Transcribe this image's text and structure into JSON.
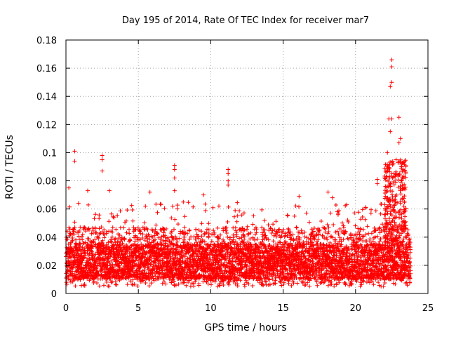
{
  "chart_data": {
    "type": "scatter",
    "title": "Day 195 of 2014, Rate Of TEC Index for receiver mar7",
    "xlabel": "GPS time / hours",
    "ylabel": "ROTI / TECUs",
    "xlim": [
      0,
      25
    ],
    "ylim": [
      0,
      0.18
    ],
    "xticks": [
      0,
      5,
      10,
      15,
      20,
      25
    ],
    "yticks": [
      0,
      0.02,
      0.04,
      0.06,
      0.08,
      0.1,
      0.12,
      0.14,
      0.16,
      0.18
    ],
    "xtick_labels": [
      "0",
      "5",
      "10",
      "15",
      "20",
      "25"
    ],
    "ytick_labels": [
      "0",
      "0.02",
      "0.04",
      "0.06",
      "0.08",
      "0.1",
      "0.12",
      "0.14",
      "0.16",
      "0.18"
    ],
    "grid": true,
    "marker": "plus",
    "color": "#ff0000",
    "series": [
      {
        "name": "ROTI",
        "x_range": [
          0,
          23.8
        ],
        "baseline_band": [
          0.01,
          0.035
        ],
        "notable_points": [
          {
            "x": 0.6,
            "y": 0.101
          },
          {
            "x": 0.6,
            "y": 0.094
          },
          {
            "x": 0.2,
            "y": 0.075
          },
          {
            "x": 1.5,
            "y": 0.073
          },
          {
            "x": 2.5,
            "y": 0.098
          },
          {
            "x": 2.5,
            "y": 0.095
          },
          {
            "x": 2.5,
            "y": 0.087
          },
          {
            "x": 3.0,
            "y": 0.073
          },
          {
            "x": 5.8,
            "y": 0.072
          },
          {
            "x": 7.5,
            "y": 0.091
          },
          {
            "x": 7.5,
            "y": 0.088
          },
          {
            "x": 7.5,
            "y": 0.082
          },
          {
            "x": 7.5,
            "y": 0.073
          },
          {
            "x": 9.5,
            "y": 0.07
          },
          {
            "x": 11.2,
            "y": 0.088
          },
          {
            "x": 11.2,
            "y": 0.085
          },
          {
            "x": 11.2,
            "y": 0.08
          },
          {
            "x": 11.2,
            "y": 0.077
          },
          {
            "x": 16.1,
            "y": 0.069
          },
          {
            "x": 18.1,
            "y": 0.072
          },
          {
            "x": 18.4,
            "y": 0.068
          },
          {
            "x": 21.5,
            "y": 0.081
          },
          {
            "x": 21.5,
            "y": 0.078
          },
          {
            "x": 22.0,
            "y": 0.082
          },
          {
            "x": 22.4,
            "y": 0.147
          },
          {
            "x": 22.5,
            "y": 0.15
          },
          {
            "x": 22.5,
            "y": 0.161
          },
          {
            "x": 22.5,
            "y": 0.166
          },
          {
            "x": 22.3,
            "y": 0.124
          },
          {
            "x": 22.5,
            "y": 0.124
          },
          {
            "x": 22.4,
            "y": 0.115
          },
          {
            "x": 23.0,
            "y": 0.125
          },
          {
            "x": 23.1,
            "y": 0.11
          },
          {
            "x": 23.0,
            "y": 0.107
          },
          {
            "x": 22.2,
            "y": 0.1
          },
          {
            "x": 22.8,
            "y": 0.095
          },
          {
            "x": 23.2,
            "y": 0.09
          },
          {
            "x": 23.3,
            "y": 0.088
          }
        ]
      }
    ]
  }
}
